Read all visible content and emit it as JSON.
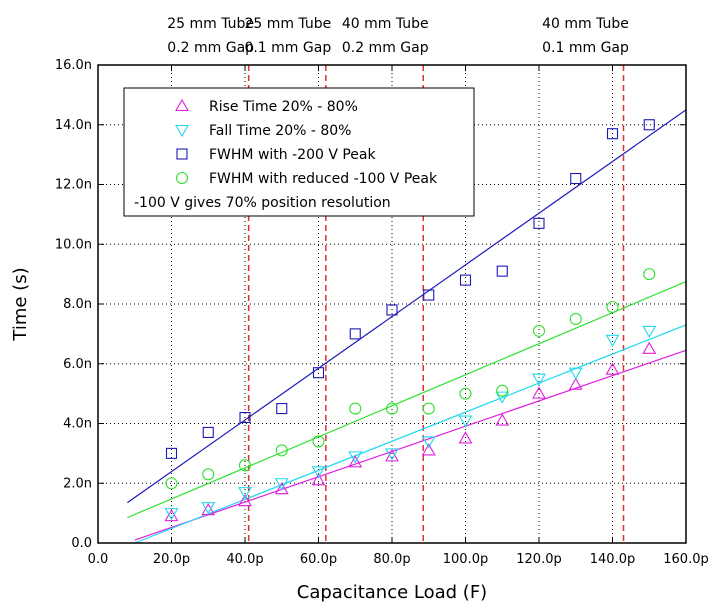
{
  "chart_data": {
    "type": "scatter",
    "xlabel": "Capacitance Load (F)",
    "ylabel": "Time (s)",
    "xlim": [
      0,
      160
    ],
    "ylim": [
      0,
      16
    ],
    "x_ticks": [
      0,
      20,
      40,
      60,
      80,
      100,
      120,
      140,
      160
    ],
    "x_tick_labels": [
      "0.0",
      "20.0p",
      "40.0p",
      "60.0p",
      "80.0p",
      "100.0p",
      "120.0p",
      "140.0p",
      "160.0p"
    ],
    "y_ticks": [
      0,
      2,
      4,
      6,
      8,
      10,
      12,
      14,
      16
    ],
    "y_tick_labels": [
      "0.0",
      "2.0n",
      "4.0n",
      "6.0n",
      "8.0n",
      "10.0n",
      "12.0n",
      "14.0n",
      "16.0n"
    ],
    "grid": true,
    "legend_position": "top-left",
    "legend_note": "-100 V gives 70% position resolution",
    "vertical_markers": [
      {
        "x": 41,
        "label_line1": "25 mm Tube",
        "label_line2": "0.2 mm Gap"
      },
      {
        "x": 62,
        "label_line1": "25 mm Tube",
        "label_line2": "0.1 mm Gap"
      },
      {
        "x": 88.5,
        "label_line1": "40 mm Tube",
        "label_line2": "0.2 mm Gap"
      },
      {
        "x": 143,
        "label_line1": "40 mm Tube",
        "label_line2": "0.1 mm Gap"
      }
    ],
    "marker_color": "#e03030",
    "series": [
      {
        "name": "Rise Time 20% - 80%",
        "marker": "triangle-up",
        "color": "#e020e0",
        "x": [
          20,
          30,
          40,
          50,
          60,
          70,
          80,
          90,
          100,
          110,
          120,
          130,
          140,
          150
        ],
        "y": [
          0.9,
          1.1,
          1.4,
          1.8,
          2.1,
          2.7,
          2.9,
          3.1,
          3.5,
          4.1,
          5.0,
          5.3,
          5.8,
          6.5
        ],
        "fit": [
          [
            10,
            0.1
          ],
          [
            160,
            6.45
          ]
        ]
      },
      {
        "name": "Fall Time 20% - 80%",
        "marker": "triangle-down",
        "color": "#20d8f0",
        "x": [
          20,
          30,
          40,
          50,
          60,
          70,
          80,
          90,
          100,
          110,
          120,
          130,
          140,
          150
        ],
        "y": [
          1.0,
          1.2,
          1.7,
          2.0,
          2.4,
          2.9,
          3.0,
          3.4,
          4.1,
          4.9,
          5.5,
          5.7,
          6.8,
          7.1
        ],
        "fit": [
          [
            10,
            0.0
          ],
          [
            160,
            7.3
          ]
        ]
      },
      {
        "name": "FWHM with -200 V Peak",
        "marker": "square",
        "color": "#1a1ab8",
        "x": [
          20,
          30,
          40,
          50,
          60,
          70,
          80,
          90,
          100,
          110,
          120,
          130,
          140,
          150
        ],
        "y": [
          3.0,
          3.7,
          4.2,
          4.5,
          5.7,
          7.0,
          7.8,
          8.3,
          8.8,
          9.1,
          10.7,
          12.2,
          13.7,
          14.0
        ],
        "fit": [
          [
            8,
            1.35
          ],
          [
            160,
            14.5
          ]
        ]
      },
      {
        "name": "FWHM with reduced -100 V Peak",
        "marker": "circle",
        "color": "#30e030",
        "x": [
          20,
          30,
          40,
          50,
          60,
          70,
          80,
          90,
          100,
          110,
          120,
          130,
          140,
          150
        ],
        "y": [
          2.0,
          2.3,
          2.6,
          3.1,
          3.4,
          4.5,
          4.5,
          4.5,
          5.0,
          5.1,
          7.1,
          7.5,
          7.9,
          9.0
        ],
        "fit": [
          [
            8,
            0.85
          ],
          [
            160,
            8.75
          ]
        ]
      }
    ]
  }
}
